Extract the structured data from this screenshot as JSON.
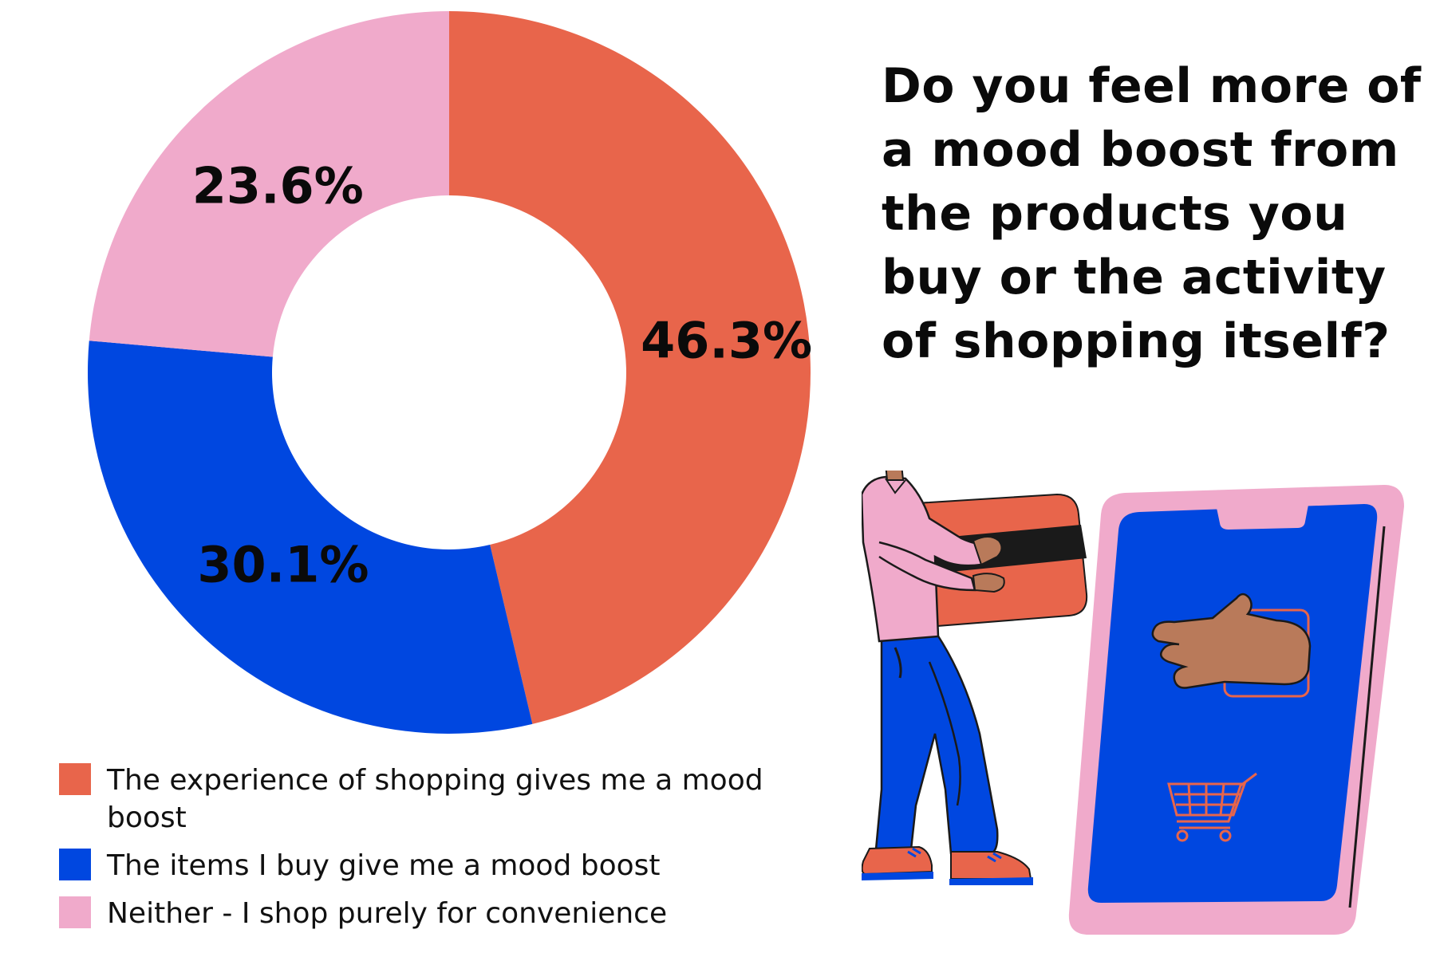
{
  "chart_data": {
    "type": "pie",
    "style": "donut",
    "title": "Do you feel more of a mood boost from the products you buy or the activity of shopping itself?",
    "categories": [
      "The experience of shopping gives me a mood boost",
      "The items I buy give me a mood boost",
      "Neither - I shop purely for convenience"
    ],
    "values": [
      46.3,
      30.1,
      23.6
    ],
    "value_labels": [
      "46.3%",
      "30.1%",
      "23.6%"
    ],
    "colors": [
      "#E8654B",
      "#0047E0",
      "#F0AACB"
    ],
    "legend_position": "bottom-left"
  },
  "illustration": {
    "description_icons": [
      "person-icon",
      "credit-card-icon",
      "smartphone-icon",
      "hand-icon",
      "shopping-cart-icon"
    ],
    "colors": {
      "pink": "#F0AACB",
      "blue": "#0047E0",
      "orange": "#E8654B",
      "skin": "#B97A5A",
      "dark": "#1a1a1a"
    }
  }
}
